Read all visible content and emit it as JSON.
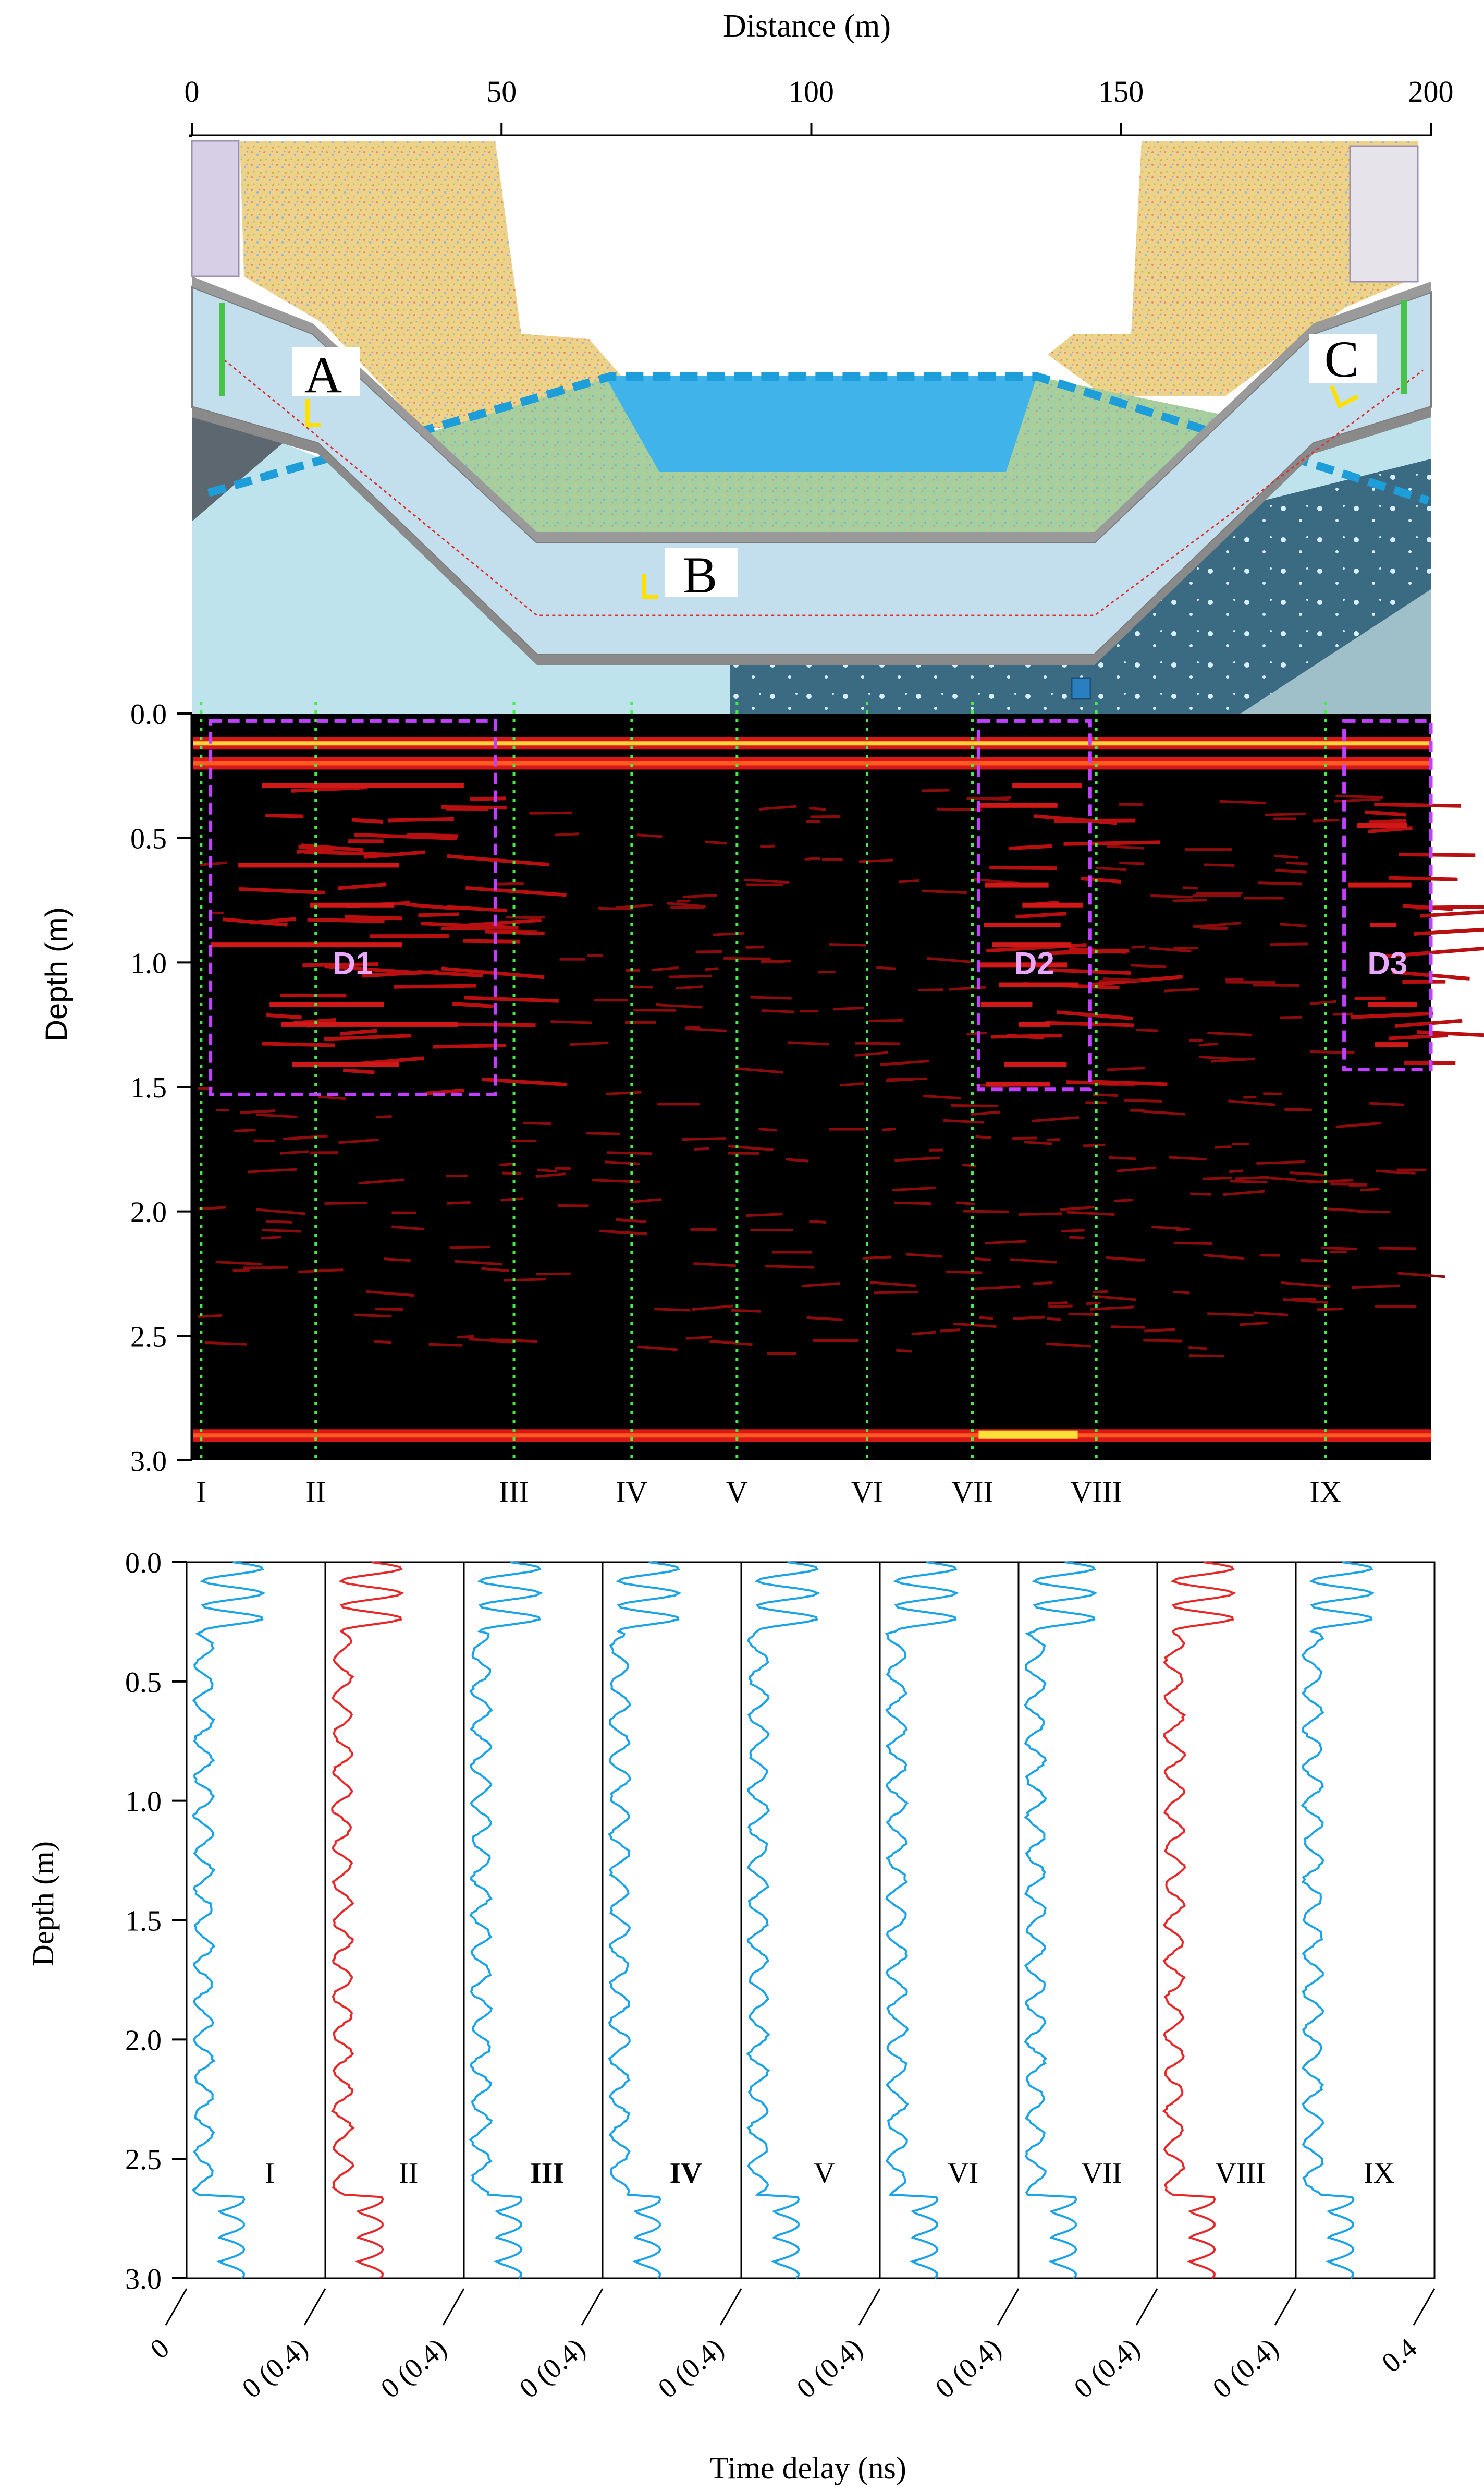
{
  "top_axis": {
    "label": "Distance (m)",
    "ticks": [
      "0",
      "50",
      "100",
      "150",
      "200"
    ],
    "range": [
      0,
      200
    ]
  },
  "cross_section": {
    "labels": [
      "A",
      "B",
      "C"
    ]
  },
  "chart_data": [
    {
      "type": "heatmap",
      "ylabel": "Depth (m)",
      "yticks": [
        "0.0",
        "0.5",
        "1.0",
        "1.5",
        "2.0",
        "2.5",
        "3.0"
      ],
      "ylim": [
        0,
        3
      ],
      "xlim": [
        0,
        200
      ],
      "colors": {
        "background": "#000000",
        "reflection": "#c81010",
        "strong": "#ff3a1a",
        "peak": "#ffe03a",
        "zone_box": "#c040ff",
        "trace_line": "#44ee44"
      },
      "reflectors": [
        {
          "x": [
            0,
            200
          ],
          "depth": 0.12,
          "strength": 1.0
        },
        {
          "x": [
            0,
            200
          ],
          "depth": 0.2,
          "strength": 0.9
        },
        {
          "x": [
            0,
            200
          ],
          "depth": 2.9,
          "strength": 0.9
        }
      ],
      "anomalies": [
        {
          "label": "D1",
          "x": [
            3,
            49
          ],
          "depth": [
            0.03,
            1.53
          ]
        },
        {
          "label": "D2",
          "x": [
            127,
            145
          ],
          "depth": [
            0.03,
            1.51
          ]
        },
        {
          "label": "D3",
          "x": [
            186,
            200
          ],
          "depth": [
            0.03,
            1.43
          ]
        }
      ],
      "survey_lines": [
        {
          "label": "I",
          "x": 1.5
        },
        {
          "label": "II",
          "x": 20
        },
        {
          "label": "III",
          "x": 52
        },
        {
          "label": "IV",
          "x": 71
        },
        {
          "label": "V",
          "x": 88
        },
        {
          "label": "VI",
          "x": 109
        },
        {
          "label": "VII",
          "x": 126
        },
        {
          "label": "VIII",
          "x": 146
        },
        {
          "label": "IX",
          "x": 183
        }
      ]
    },
    {
      "type": "line",
      "xlabel": "Time delay (ns)",
      "ylabel": "Depth (m)",
      "yticks": [
        "0.0",
        "0.5",
        "1.0",
        "1.5",
        "2.0",
        "2.5",
        "3.0"
      ],
      "ylim": [
        0,
        3
      ],
      "xtick_labels": [
        "0",
        "0 (0.4)",
        "0 (0.4)",
        "0 (0.4)",
        "0 (0.4)",
        "0 (0.4)",
        "0 (0.4)",
        "0 (0.4)",
        "0 (0.4)",
        "0.4"
      ],
      "series": [
        {
          "name": "I",
          "color": "#1aa3e8"
        },
        {
          "name": "II",
          "color": "#e82828"
        },
        {
          "name": "III",
          "color": "#1aa3e8"
        },
        {
          "name": "IV",
          "color": "#1aa3e8"
        },
        {
          "name": "V",
          "color": "#1aa3e8"
        },
        {
          "name": "VI",
          "color": "#1aa3e8"
        },
        {
          "name": "VII",
          "color": "#1aa3e8"
        },
        {
          "name": "VIII",
          "color": "#e82828"
        },
        {
          "name": "IX",
          "color": "#1aa3e8"
        }
      ],
      "bold_series": [
        "III",
        "IV"
      ]
    }
  ]
}
